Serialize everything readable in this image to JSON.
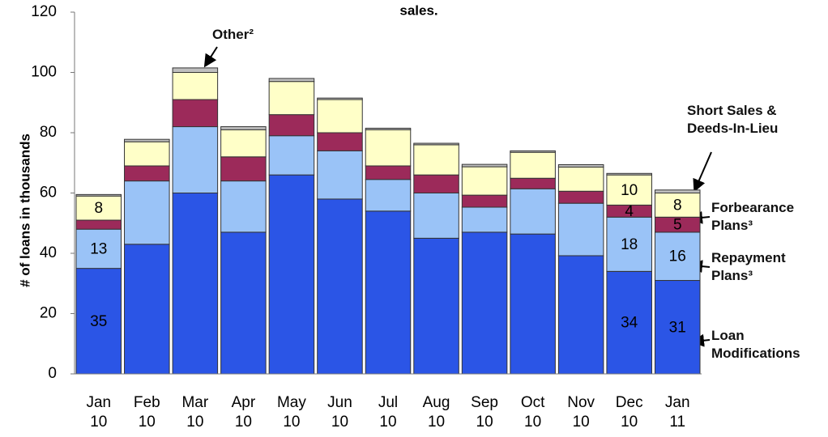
{
  "chart_data": {
    "type": "stacked-bar",
    "title": "sales.",
    "y_label": "# of loans in thousands",
    "categories": [
      "Jan 10",
      "Feb 10",
      "Mar 10",
      "Apr 10",
      "May 10",
      "Jun 10",
      "Jul 10",
      "Aug 10",
      "Sep 10",
      "Oct 10",
      "Nov 10",
      "Dec 10",
      "Jan 11"
    ],
    "series": [
      {
        "name": "Loan Modifications",
        "color": "#2b55e6",
        "values": [
          35,
          43,
          60,
          47,
          66,
          58,
          54,
          45,
          47,
          46.4,
          39.2,
          34,
          31
        ],
        "value_labels": [
          "35",
          null,
          null,
          null,
          null,
          null,
          null,
          null,
          null,
          null,
          null,
          "34",
          "31"
        ]
      },
      {
        "name": "Repayment Plans³",
        "color": "#9ac3f7",
        "values": [
          13,
          21,
          22,
          17,
          13,
          16,
          10.5,
          15,
          8.3,
          15,
          17.4,
          18,
          16
        ],
        "value_labels": [
          "13",
          null,
          null,
          null,
          null,
          null,
          null,
          null,
          null,
          null,
          null,
          "18",
          "16"
        ]
      },
      {
        "name": "Forbearance Plans³",
        "color": "#9c2a5a",
        "values": [
          3,
          5,
          9,
          8,
          7,
          6,
          4.5,
          6,
          4,
          3.5,
          4,
          4,
          5
        ],
        "value_labels": [
          null,
          null,
          null,
          null,
          null,
          null,
          null,
          null,
          null,
          null,
          null,
          "4",
          "5"
        ]
      },
      {
        "name": "Short Sales & Deeds-In-Lieu",
        "color": "#ffffc8",
        "values": [
          8,
          8,
          9,
          9,
          11,
          11,
          12,
          10,
          9.4,
          8.6,
          8,
          10,
          8
        ],
        "value_labels": [
          "8",
          null,
          null,
          null,
          null,
          null,
          null,
          null,
          null,
          null,
          null,
          "10",
          "8"
        ]
      },
      {
        "name": "Other²",
        "color": "#bfbfbf",
        "values": [
          0.5,
          0.8,
          1.5,
          1,
          1,
          0.5,
          0.5,
          0.5,
          0.8,
          0.5,
          0.8,
          0.5,
          1
        ]
      }
    ],
    "ylim": [
      0,
      120
    ],
    "yticks": [
      0,
      20,
      40,
      60,
      80,
      100,
      120
    ],
    "grid": false
  }
}
